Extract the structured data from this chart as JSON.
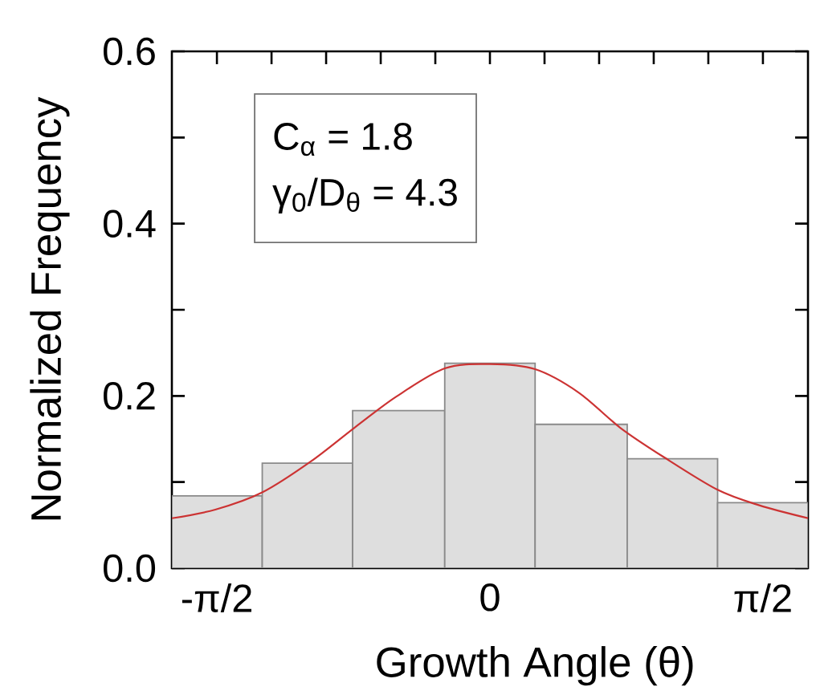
{
  "chart_data": {
    "type": "histogram",
    "xlabel": "Growth Angle (θ)",
    "ylabel": "Normalized Frequency",
    "annotations": [
      "C$_{α}$ = 1.8",
      "γ$_{0}$/D$_{θ}$ = 4.3"
    ],
    "series": [
      {
        "color": "#dedede",
        "bins": [
          -1.83,
          -1.31,
          -0.79,
          -0.26,
          0.26,
          0.79,
          1.31,
          1.83
        ],
        "values": [
          0.084,
          0.122,
          0.183,
          0.238,
          0.167,
          0.127,
          0.076
        ]
      },
      {
        "type": "line",
        "color": "#cc3333",
        "x": [
          -1.83,
          -1.58,
          -1.31,
          -1.03,
          -0.78,
          -0.54,
          -0.26,
          0,
          0.26,
          0.51,
          0.75,
          1.0,
          1.31,
          1.55,
          1.83
        ],
        "values": [
          0.058,
          0.068,
          0.088,
          0.124,
          0.163,
          0.199,
          0.232,
          0.237,
          0.231,
          0.204,
          0.163,
          0.129,
          0.091,
          0.073,
          0.058
        ]
      }
    ],
    "xlim": [
      -1.83,
      1.83
    ],
    "xticks": [
      {
        "value": -1.5708,
        "label": "-π/2"
      },
      {
        "value": -1.2566,
        "label": null
      },
      {
        "value": -0.9425,
        "label": null
      },
      {
        "value": -0.6283,
        "label": null
      },
      {
        "value": -0.3142,
        "label": null
      },
      0,
      {
        "value": 0.3142,
        "label": null
      },
      {
        "value": 0.6283,
        "label": null
      },
      {
        "value": 0.9425,
        "label": null
      },
      {
        "value": 1.2566,
        "label": null
      },
      {
        "value": 1.5708,
        "label": "π/2"
      }
    ],
    "ylim": [
      0,
      0.6
    ],
    "yticks": [
      {
        "value": 0,
        "label": "0.0"
      },
      {
        "value": 0.1,
        "label": null
      },
      0.2,
      {
        "value": 0.3,
        "label": null
      },
      0.4,
      {
        "value": 0.5,
        "label": null
      },
      0.6
    ]
  }
}
